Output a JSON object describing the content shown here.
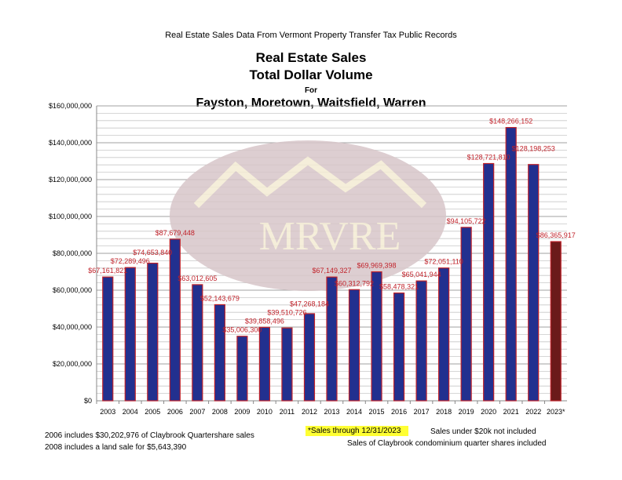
{
  "header": {
    "supertitle": "Real Estate Sales Data From Vermont Property Transfer Tax Public Records",
    "title_line1": "Real Estate Sales",
    "title_line2": "Total Dollar Volume",
    "title_line3": "For",
    "title_line4": "Fayston, Moretown, Waitsfield, Warren"
  },
  "watermark": {
    "text": "MRVRE"
  },
  "chart_data": {
    "type": "bar",
    "categories": [
      "2003",
      "2004",
      "2005",
      "2006",
      "2007",
      "2008",
      "2009",
      "2010",
      "2011",
      "2012",
      "2013",
      "2014",
      "2015",
      "2016",
      "2017",
      "2018",
      "2019",
      "2020",
      "2021",
      "2022",
      "2023*"
    ],
    "values": [
      67161821,
      72289496,
      74653840,
      87679448,
      63012605,
      52143679,
      35006300,
      39858496,
      39510726,
      47268184,
      67149327,
      60312792,
      69969398,
      58478321,
      65041944,
      72051110,
      94105722,
      128721810,
      148266152,
      128198253,
      86365917
    ],
    "data_labels": [
      "$67,161,821",
      "$72,289,496",
      "$74,653,840",
      "$87,679,448",
      "$63,012,605",
      "$52,143,679",
      "$35,006,300",
      "$39,858,496",
      "$39,510,726",
      "$47,268,184",
      "$67,149,327",
      "$60,312,792",
      "$69,969,398",
      "$58,478,321",
      "$65,041,944",
      "$72,051,110",
      "$94,105,722",
      "$128,721,810",
      "$148,266,152",
      "$128,198,253",
      "$86,365,917"
    ],
    "ylim": [
      0,
      160000000
    ],
    "yticks": [
      "$0",
      "$20,000,000",
      "$40,000,000",
      "$60,000,000",
      "$80,000,000",
      "$100,000,000",
      "$120,000,000",
      "$140,000,000",
      "$160,000,000"
    ],
    "grid": true,
    "colors": {
      "bar": "#22308f",
      "bar_edge": "#c0222a",
      "bar_partial": "#6b1a1a",
      "label": "#c0222a"
    }
  },
  "notes": {
    "left1": "2006 includes $30,202,976 of Claybrook Quartershare sales",
    "left2": "2008 includes a land sale for $5,643,390",
    "highlight": "*Sales through 12/31/2023",
    "right1": "Sales under $20k not included",
    "right2": "Sales of Claybrook condominium quarter shares included"
  }
}
